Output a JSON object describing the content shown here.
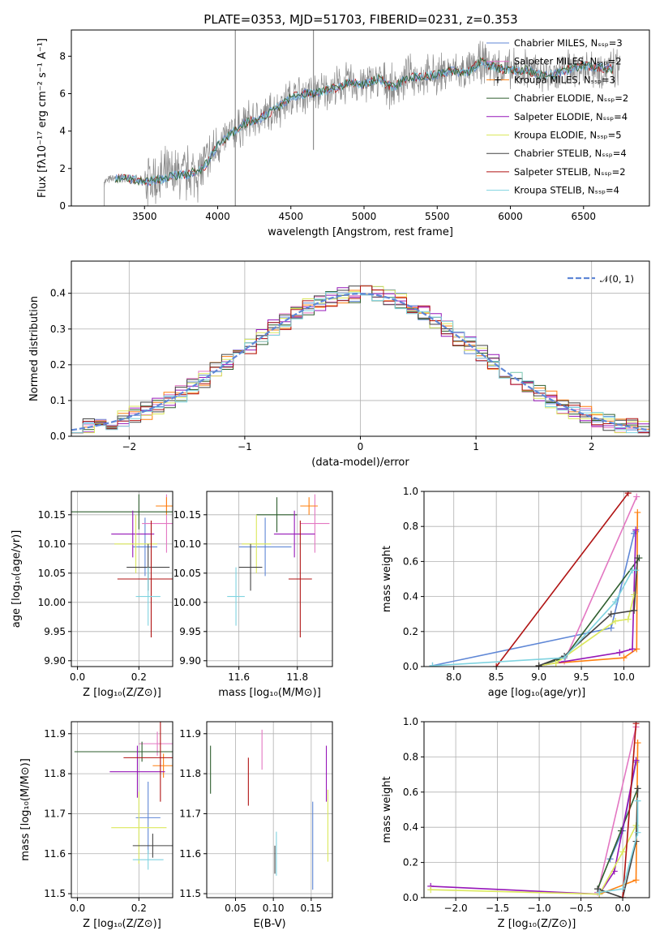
{
  "colors": [
    "#5f87d6",
    "#e377c2",
    "#ff7f0e",
    "#2e5e2e",
    "#9617b8",
    "#dbe85c",
    "#444444",
    "#b01313",
    "#7fd3e0"
  ],
  "panel_spectrum": {
    "title": "PLATE=0353, MJD=51703, FIBERID=0231, z=0.353",
    "xlabel": "wavelength [Angstrom, rest frame]",
    "ylabel": "Flux [fλ10⁻¹⁷ erg cm⁻² s⁻¹ A⁻¹]",
    "xticks": [
      "3500",
      "4000",
      "4500",
      "5000",
      "5500",
      "6000",
      "6500"
    ],
    "yticks": [
      "0",
      "2",
      "4",
      "6",
      "8"
    ],
    "legend": [
      "Chabrier MILES, Nₛₛₚ=3",
      "Salpeter MILES, Nₛₛₚ=2",
      "Kroupa MILES, Nₛₛₚ=3",
      "Chabrier ELODIE, Nₛₛₚ=2",
      "Salpeter ELODIE, Nₛₛₚ=4",
      "Kroupa ELODIE, Nₛₛₚ=5",
      "Chabrier STELIB, Nₛₛₚ=4",
      "Salpeter STELIB, Nₛₛₚ=2",
      "Kroupa STELIB, Nₛₛₚ=4"
    ]
  },
  "panel_hist": {
    "xlabel": "(data-model)/error",
    "ylabel": "Normed distribution",
    "xticks": [
      "−2",
      "−1",
      "0",
      "1",
      "2"
    ],
    "yticks": [
      "0.0",
      "0.1",
      "0.2",
      "0.3",
      "0.4"
    ],
    "legend": "𝒩(0, 1)"
  },
  "panel_age_Z": {
    "xlabel": "Z [log₁₀(Z/Z⊙)]",
    "ylabel": "age  [log₁₀(age/yr)]",
    "xticks": [
      "0.0",
      "0.2"
    ],
    "yticks": [
      "9.90",
      "9.95",
      "10.00",
      "10.05",
      "10.10",
      "10.15"
    ]
  },
  "panel_age_mass": {
    "xlabel": "mass [log₁₀(M/M⊙)]",
    "xticks": [
      "11.6",
      "11.8"
    ],
    "yticks": [
      "9.90",
      "9.95",
      "10.00",
      "10.05",
      "10.10",
      "10.15"
    ]
  },
  "panel_mw_age": {
    "xlabel": "age  [log₁₀(age/yr)]",
    "ylabel": "mass weight",
    "xticks": [
      "8.0",
      "8.5",
      "9.0",
      "9.5",
      "10.0"
    ],
    "yticks": [
      "0.0",
      "0.2",
      "0.4",
      "0.6",
      "0.8",
      "1.0"
    ]
  },
  "panel_mass_Z": {
    "xlabel": "Z [log₁₀(Z/Z⊙)]",
    "ylabel": "mass [log₁₀(M/M⊙)]",
    "xticks": [
      "0.0",
      "0.2"
    ],
    "yticks": [
      "11.5",
      "11.6",
      "11.7",
      "11.8",
      "11.9"
    ]
  },
  "panel_mass_ebv": {
    "xlabel": "E(B-V)",
    "xticks": [
      "0.05",
      "0.10",
      "0.15"
    ],
    "yticks": [
      "11.5",
      "11.6",
      "11.7",
      "11.8",
      "11.9"
    ]
  },
  "panel_mw_Z": {
    "xlabel": "Z [log₁₀(Z/Z⊙)]",
    "ylabel": "mass weight",
    "xticks": [
      "−2.0",
      "−1.5",
      "−1.0",
      "−0.5",
      "0.0"
    ],
    "yticks": [
      "0.0",
      "0.2",
      "0.4",
      "0.6",
      "0.8",
      "1.0"
    ]
  },
  "chart_data": [
    {
      "type": "line",
      "title": "PLATE=0353, MJD=51703, FIBERID=0231, z=0.353",
      "xlim": [
        3000,
        6950
      ],
      "ylim": [
        0,
        9.4
      ],
      "spectrum_knots": {
        "x": [
          3225,
          3300,
          3400,
          3500,
          3600,
          3700,
          3800,
          3900,
          4000,
          4100,
          4200,
          4300,
          4400,
          4500,
          4600,
          4700,
          4800,
          4900,
          5000,
          5100,
          5200,
          5300,
          5400,
          5500,
          5600,
          5700,
          5800,
          5900,
          6000,
          6100,
          6200,
          6300,
          6400,
          6500,
          6600,
          6700,
          6750
        ],
        "y": [
          1.3,
          1.5,
          1.45,
          1.3,
          1.4,
          1.6,
          1.7,
          2.0,
          3.2,
          3.9,
          4.5,
          4.7,
          5.2,
          5.8,
          6.0,
          6.1,
          6.3,
          6.6,
          6.5,
          6.8,
          6.3,
          6.9,
          6.9,
          7.0,
          7.2,
          7.1,
          7.7,
          7.4,
          7.2,
          7.3,
          7.0,
          7.0,
          7.3,
          7.5,
          7.4,
          7.3,
          7.3
        ]
      }
    },
    {
      "type": "line",
      "xlim": [
        -2.5,
        2.5
      ],
      "ylim": [
        0,
        0.49
      ],
      "gaussian": {
        "mu": 0,
        "sigma": 1
      }
    },
    {
      "type": "scatter",
      "xlim": [
        -0.02,
        0.31
      ],
      "ylim": [
        9.89,
        10.19
      ],
      "points": [
        {
          "x": 0.22,
          "xerr": 0.04,
          "y": 10.095,
          "yerr": 0.05
        },
        {
          "x": 0.29,
          "xerr": 0.08,
          "y": 10.135,
          "yerr": 0.05
        },
        {
          "x": 0.29,
          "xerr": 0.035,
          "y": 10.165,
          "yerr": 0.015
        },
        {
          "x": 0.2,
          "xerr": 0.22,
          "y": 10.155,
          "yerr": 0.03
        },
        {
          "x": 0.18,
          "xerr": 0.07,
          "y": 10.117,
          "yerr": 0.04
        },
        {
          "x": 0.19,
          "xerr": 0.07,
          "y": 10.1,
          "yerr": 0.05
        },
        {
          "x": 0.23,
          "xerr": 0.07,
          "y": 10.06,
          "yerr": 0.04
        },
        {
          "x": 0.24,
          "xerr": 0.11,
          "y": 10.04,
          "yerr": 0.1
        },
        {
          "x": 0.23,
          "xerr": 0.04,
          "y": 10.01,
          "yerr": 0.05
        }
      ]
    },
    {
      "type": "scatter",
      "xlim": [
        11.49,
        11.92
      ],
      "ylim": [
        9.89,
        10.19
      ],
      "points": [
        {
          "x": 11.69,
          "xerr": 0.09,
          "y": 10.095,
          "yerr": 0.05
        },
        {
          "x": 11.86,
          "xerr": 0.05,
          "y": 10.135,
          "yerr": 0.05
        },
        {
          "x": 11.84,
          "xerr": 0.03,
          "y": 10.165,
          "yerr": 0.015
        },
        {
          "x": 11.73,
          "xerr": 0.07,
          "y": 10.15,
          "yerr": 0.03
        },
        {
          "x": 11.79,
          "xerr": 0.07,
          "y": 10.117,
          "yerr": 0.04
        },
        {
          "x": 11.66,
          "xerr": 0.05,
          "y": 10.1,
          "yerr": 0.05
        },
        {
          "x": 11.64,
          "xerr": 0.04,
          "y": 10.06,
          "yerr": 0.04
        },
        {
          "x": 11.81,
          "xerr": 0.04,
          "y": 10.04,
          "yerr": 0.1
        },
        {
          "x": 11.59,
          "xerr": 0.03,
          "y": 10.01,
          "yerr": 0.05
        }
      ]
    },
    {
      "type": "line",
      "xlim": [
        7.65,
        10.3
      ],
      "ylim": [
        0,
        1
      ],
      "series": [
        {
          "x": [
            7.75,
            9.85,
            10.12,
            10.14
          ],
          "y": [
            0.005,
            0.22,
            0.76,
            0.77
          ]
        },
        {
          "x": [
            9.3,
            10.15
          ],
          "y": [
            0.03,
            0.97
          ]
        },
        {
          "x": [
            9.2,
            10.0,
            10.15,
            10.16
          ],
          "y": [
            0.02,
            0.05,
            0.1,
            0.88
          ]
        },
        {
          "x": [
            9.0,
            9.3,
            10.18
          ],
          "y": [
            0.005,
            0.05,
            0.62
          ]
        },
        {
          "x": [
            9.0,
            9.95,
            10.1,
            10.14
          ],
          "y": [
            0.005,
            0.08,
            0.1,
            0.78
          ]
        },
        {
          "x": [
            9.0,
            9.2,
            9.9,
            10.05,
            10.12
          ],
          "y": [
            0.005,
            0.02,
            0.26,
            0.27,
            0.41
          ]
        },
        {
          "x": [
            9.0,
            9.3,
            9.85,
            10.12,
            10.16
          ],
          "y": [
            0.005,
            0.06,
            0.3,
            0.32,
            0.62
          ]
        },
        {
          "x": [
            8.5,
            10.05
          ],
          "y": [
            0,
            0.99
          ]
        },
        {
          "x": [
            7.75,
            9.3,
            9.9,
            10.1,
            10.14
          ],
          "y": [
            0.005,
            0.05,
            0.37,
            0.55,
            0.55
          ]
        }
      ]
    },
    {
      "type": "scatter",
      "xlim": [
        -0.02,
        0.31
      ],
      "ylim": [
        11.49,
        11.93
      ],
      "points": [
        {
          "x": 0.23,
          "xerr": 0.04,
          "y": 11.69,
          "yerr": 0.09
        },
        {
          "x": 0.26,
          "xerr": 0.06,
          "y": 11.875,
          "yerr": 0.03
        },
        {
          "x": 0.28,
          "xerr": 0.035,
          "y": 11.82,
          "yerr": 0.03
        },
        {
          "x": 0.21,
          "xerr": 0.22,
          "y": 11.855,
          "yerr": 0.025
        },
        {
          "x": 0.195,
          "xerr": 0.09,
          "y": 11.805,
          "yerr": 0.065
        },
        {
          "x": 0.2,
          "xerr": 0.09,
          "y": 11.665,
          "yerr": 0.09
        },
        {
          "x": 0.245,
          "xerr": 0.065,
          "y": 11.62,
          "yerr": 0.03
        },
        {
          "x": 0.27,
          "xerr": 0.12,
          "y": 11.84,
          "yerr": 0.11
        },
        {
          "x": 0.23,
          "xerr": 0.05,
          "y": 11.585,
          "yerr": 0.025
        }
      ]
    },
    {
      "type": "scatter",
      "xlim": [
        0.012,
        0.178
      ],
      "ylim": [
        11.49,
        11.93
      ],
      "points": [
        {
          "x": 0.152,
          "y": 11.62,
          "yerr": 0.11
        },
        {
          "x": 0.085,
          "y": 11.86,
          "yerr": 0.05
        },
        {
          "x": 0.017,
          "y": 11.81,
          "yerr": 0.06
        },
        {
          "x": 0.17,
          "y": 11.8,
          "yerr": 0.07
        },
        {
          "x": 0.172,
          "y": 11.67,
          "yerr": 0.09
        },
        {
          "x": 0.104,
          "y": 11.6,
          "yerr": 0.055
        },
        {
          "x": 0.067,
          "y": 11.78,
          "yerr": 0.06
        },
        {
          "x": 0.102,
          "y": 11.585,
          "yerr": 0.035
        }
      ]
    },
    {
      "type": "line",
      "xlim": [
        -2.38,
        0.32
      ],
      "ylim": [
        0,
        1
      ],
      "series": [
        {
          "x": [
            -0.15,
            0.0,
            0.16
          ],
          "y": [
            0.22,
            0.38,
            0.77
          ]
        },
        {
          "x": [
            -0.3,
            0.16
          ],
          "y": [
            0.03,
            0.97
          ]
        },
        {
          "x": [
            -0.28,
            0.16,
            0.18
          ],
          "y": [
            0.02,
            0.1,
            0.88
          ]
        },
        {
          "x": [
            -0.3,
            -0.02,
            0.18
          ],
          "y": [
            0.05,
            0.38,
            0.62
          ]
        },
        {
          "x": [
            -2.3,
            -0.28,
            -0.1,
            0.16
          ],
          "y": [
            0.065,
            0.02,
            0.15,
            0.78
          ]
        },
        {
          "x": [
            -2.3,
            -0.28,
            0.0,
            0.16
          ],
          "y": [
            0.045,
            0.02,
            0.26,
            0.41
          ]
        },
        {
          "x": [
            -0.3,
            0.0,
            0.16,
            0.18
          ],
          "y": [
            0.05,
            0.0,
            0.32,
            0.62
          ]
        },
        {
          "x": [
            0.0,
            0.16
          ],
          "y": [
            0.0,
            0.99
          ]
        },
        {
          "x": [
            -0.28,
            0.0,
            0.18,
            0.18
          ],
          "y": [
            0.03,
            0.05,
            0.37,
            0.55
          ]
        }
      ]
    }
  ]
}
